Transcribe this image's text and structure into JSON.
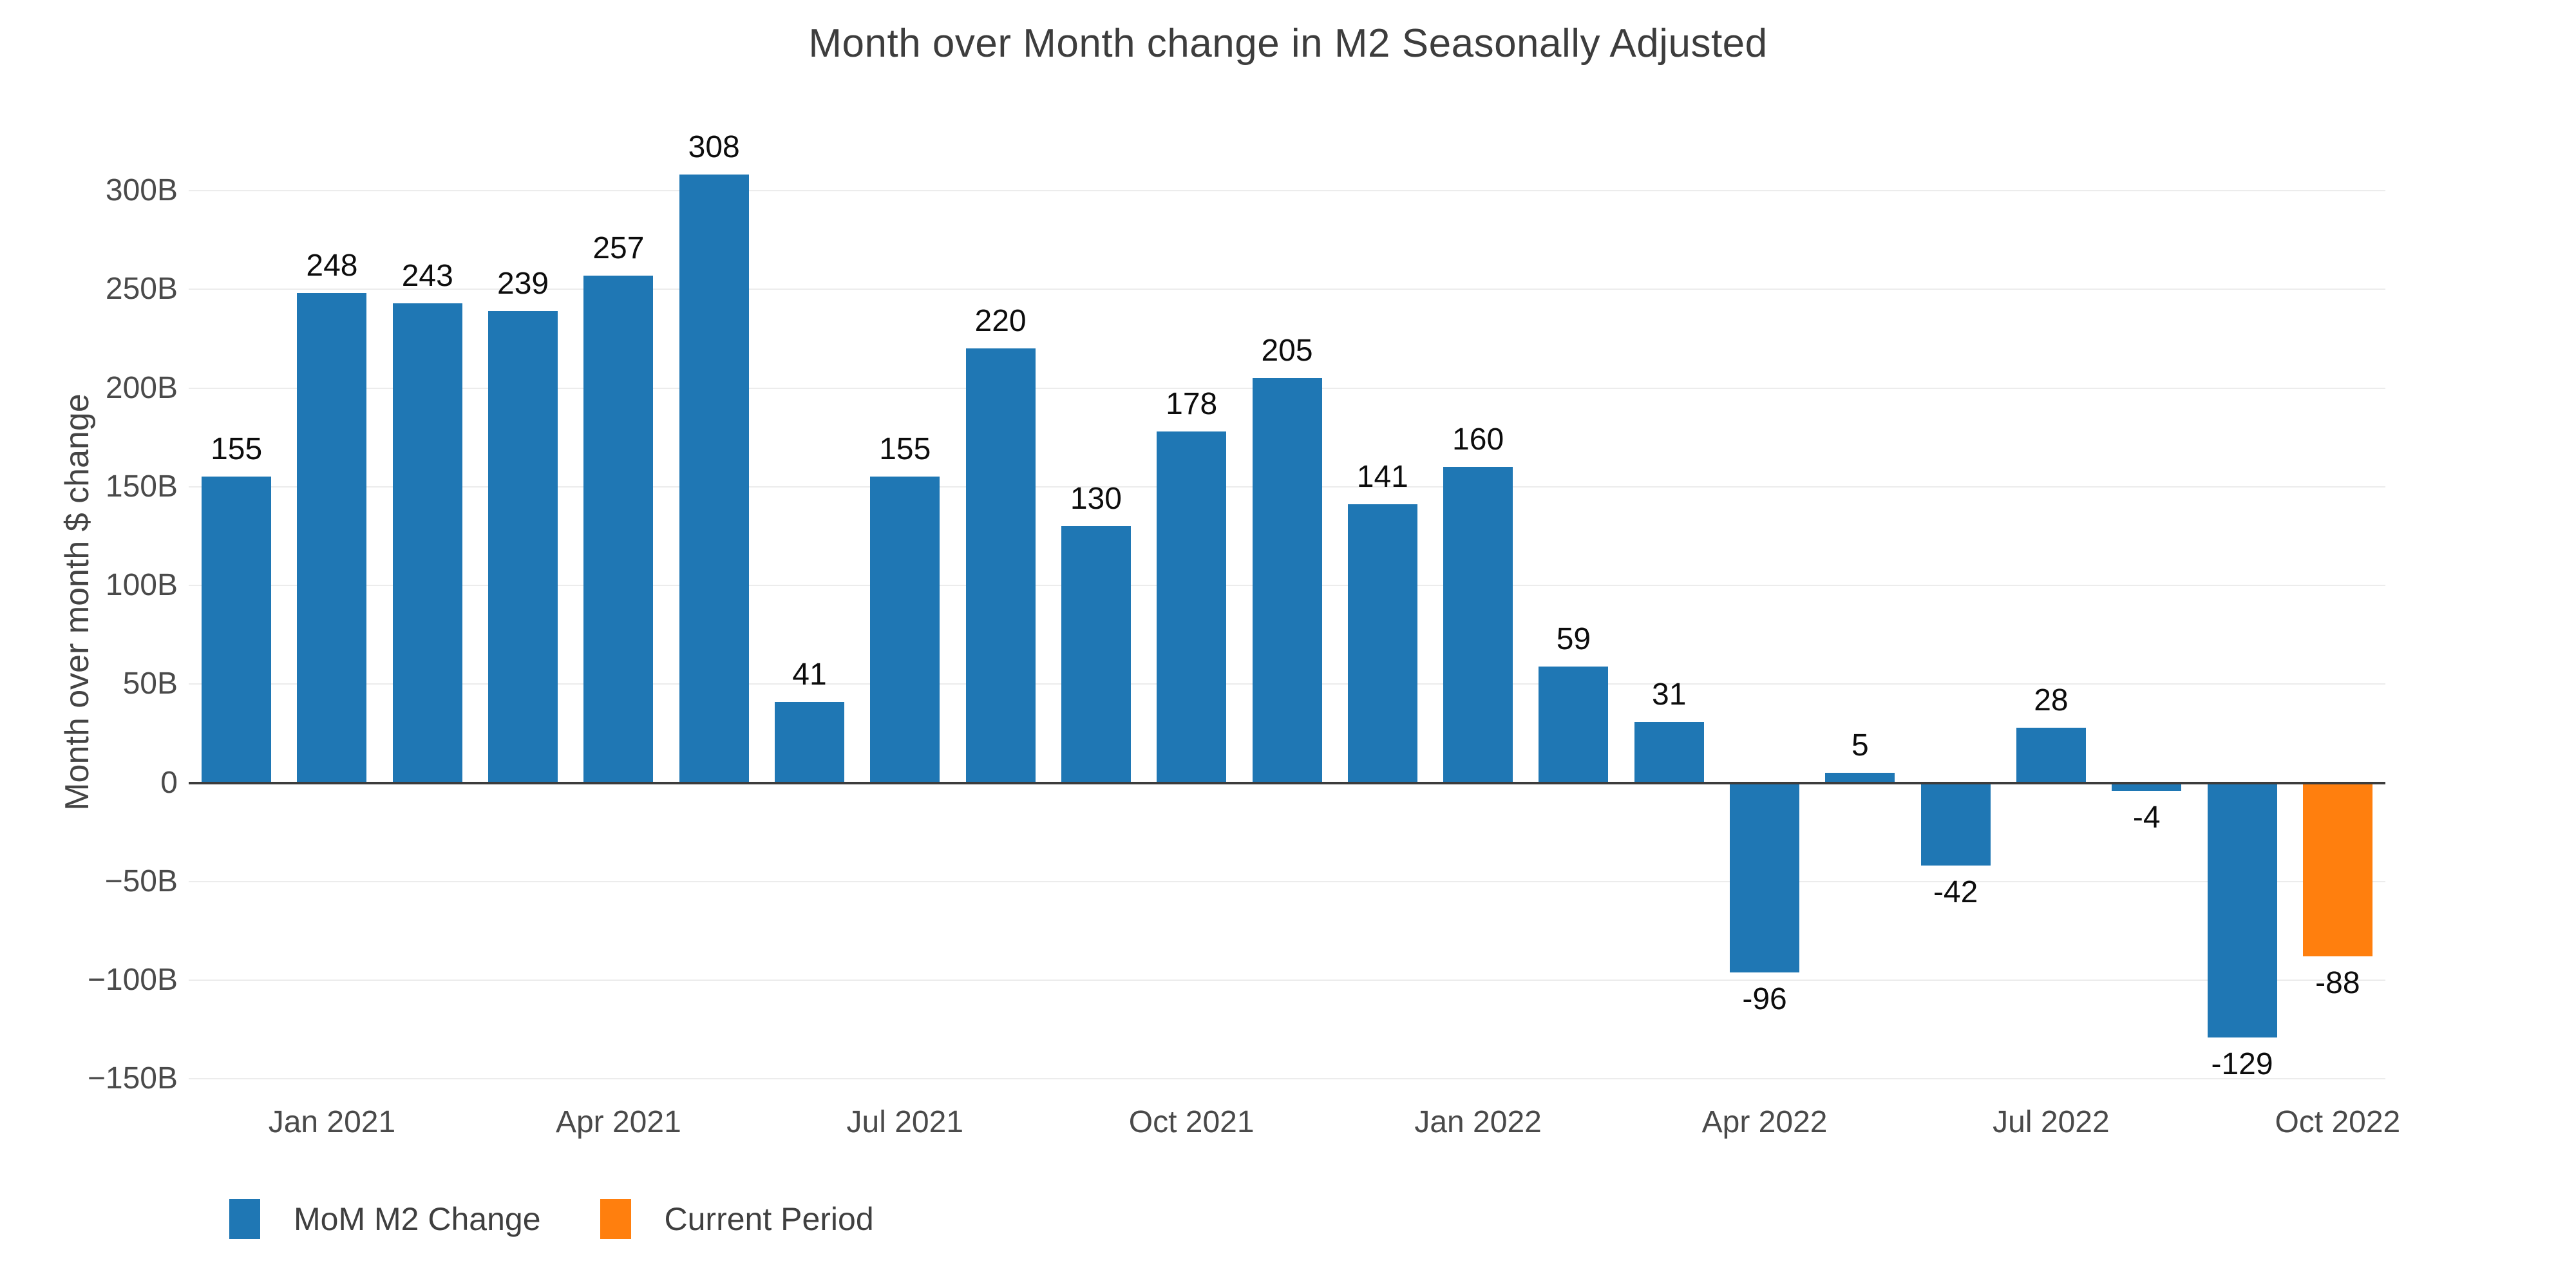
{
  "chart_data": {
    "type": "bar",
    "title": "Month over Month change in M2 Seasonally Adjusted",
    "xlabel": "",
    "ylabel": "Month over month $ change",
    "values": [
      155,
      248,
      243,
      239,
      257,
      308,
      41,
      155,
      220,
      130,
      178,
      205,
      141,
      160,
      59,
      31,
      -96,
      5,
      -42,
      28,
      -4,
      -129,
      -88
    ],
    "value_labels": [
      "155",
      "248",
      "243",
      "239",
      "257",
      "308",
      "41",
      "155",
      "220",
      "130",
      "178",
      "205",
      "141",
      "160",
      "59",
      "31",
      "-96",
      "5",
      "-42",
      "28",
      "-4",
      "-129",
      "-88"
    ],
    "bar_count": 23,
    "highlight_index": 22,
    "bar_color": "#1f77b4",
    "highlight_color": "#ff7f0e",
    "x_ticks": [
      {
        "bar": 1,
        "label": "Jan 2021"
      },
      {
        "bar": 4,
        "label": "Apr 2021"
      },
      {
        "bar": 7,
        "label": "Jul 2021"
      },
      {
        "bar": 10,
        "label": "Oct 2021"
      },
      {
        "bar": 13,
        "label": "Jan 2022"
      },
      {
        "bar": 16,
        "label": "Apr 2022"
      },
      {
        "bar": 19,
        "label": "Jul 2022"
      },
      {
        "bar": 22,
        "label": "Oct 2022"
      }
    ],
    "y_ticks": [
      {
        "value": 300,
        "label": "300B"
      },
      {
        "value": 250,
        "label": "250B"
      },
      {
        "value": 200,
        "label": "200B"
      },
      {
        "value": 150,
        "label": "150B"
      },
      {
        "value": 100,
        "label": "100B"
      },
      {
        "value": 50,
        "label": "50B"
      },
      {
        "value": 0,
        "label": "0"
      },
      {
        "value": -50,
        "label": "−50B"
      },
      {
        "value": -100,
        "label": "−100B"
      },
      {
        "value": -150,
        "label": "−150B"
      }
    ],
    "ylim": [
      -158,
      315
    ],
    "grid": true,
    "grid_color": "#ececec",
    "zero_line_color": "#3c3c3c",
    "legend_position": "bottom-left",
    "legend": [
      {
        "label": "MoM M2 Change",
        "color": "#1f77b4"
      },
      {
        "label": "Current Period",
        "color": "#ff7f0e"
      }
    ]
  }
}
